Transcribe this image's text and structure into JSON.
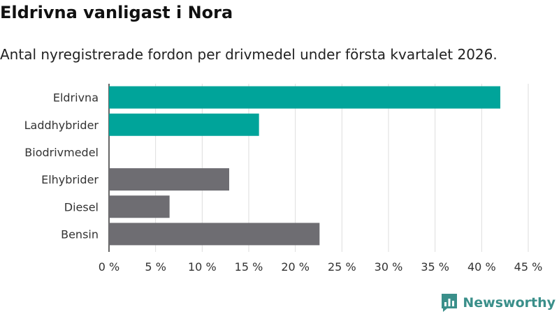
{
  "header": {
    "title": "Eldrivna vanligast i Nora",
    "subtitle": "Antal nyregistrerade fordon per drivmedel under första kvartalet 2026."
  },
  "brand": {
    "name": "Newsworthy",
    "icon": "newsworthy-logo-icon",
    "color": "#3a8f8a"
  },
  "colors": {
    "highlight": "#00a49a",
    "default": "#6e6d72",
    "grid": "#dddddd",
    "axis": "#333333"
  },
  "chart_data": {
    "type": "bar",
    "orientation": "horizontal",
    "title": "Eldrivna vanligast i Nora",
    "subtitle": "Antal nyregistrerade fordon per drivmedel under första kvartalet 2026.",
    "xlabel": "",
    "ylabel": "",
    "xlim": [
      0,
      45
    ],
    "grid": true,
    "unit_suffix": " %",
    "ticks": [
      0,
      5,
      10,
      15,
      20,
      25,
      30,
      35,
      40,
      45
    ],
    "categories": [
      "Eldrivna",
      "Laddhybrider",
      "Biodrivmedel",
      "Elhybrider",
      "Diesel",
      "Bensin"
    ],
    "values": [
      42,
      16.1,
      0,
      12.9,
      6.5,
      22.6
    ],
    "highlight": [
      true,
      true,
      false,
      false,
      false,
      false
    ]
  }
}
